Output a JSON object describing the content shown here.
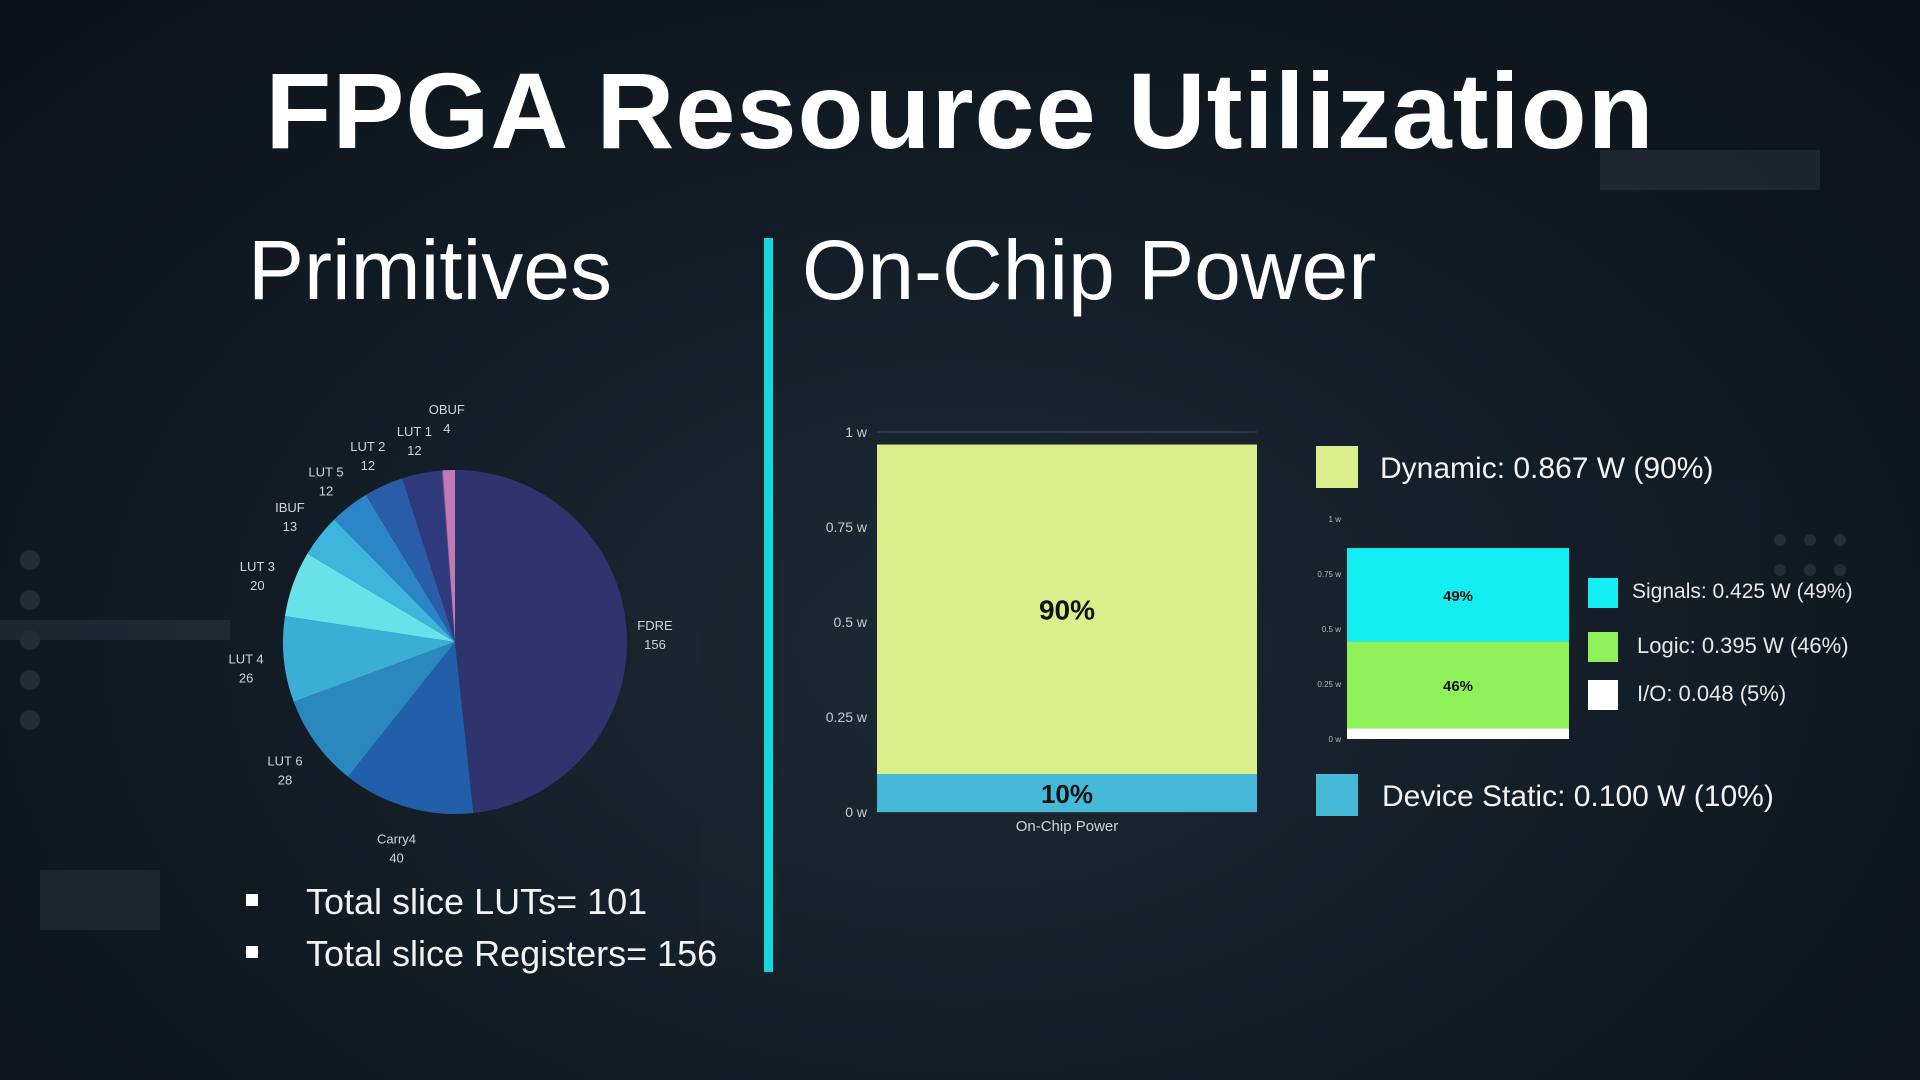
{
  "title": "FPGA Resource Utilization",
  "primitives": {
    "heading": "Primitives",
    "bullets": [
      "Total slice LUTs= 101",
      "Total slice Registers= 156"
    ]
  },
  "power": {
    "heading": "On-Chip Power",
    "legend": {
      "dynamic": "Dynamic: 0.867 W  (90%)",
      "signals": "Signals: 0.425 W  (49%)",
      "logic": "Logic: 0.395 W  (46%)",
      "io": "I/O:  0.048  (5%)",
      "static": "Device Static:  0.100 W  (10%)"
    }
  },
  "chart_data": [
    {
      "type": "pie",
      "title": "Primitives",
      "categories": [
        "FDRE",
        "Carry4",
        "LUT 6",
        "LUT 4",
        "LUT 3",
        "IBUF",
        "LUT 5",
        "LUT 2",
        "LUT 1",
        "OBUF"
      ],
      "values": [
        156,
        40,
        28,
        26,
        20,
        13,
        12,
        12,
        12,
        4
      ],
      "colors": [
        "#2e356e",
        "#215faa",
        "#2b88bf",
        "#3aaed6",
        "#69e1ea",
        "#3eb5dd",
        "#2a86c7",
        "#2a5da7",
        "#2f3a7d",
        "#7a5196"
      ],
      "extra_slice_color": "#c27ab4"
    },
    {
      "type": "bar",
      "stacked": true,
      "title": "",
      "categories": [
        "On-Chip Power"
      ],
      "series": [
        {
          "name": "Device Static",
          "values": [
            0.1
          ],
          "label": "10%",
          "color": "#46b8d8"
        },
        {
          "name": "Dynamic",
          "values": [
            0.867
          ],
          "label": "90%",
          "color": "#dbee8c"
        }
      ],
      "yticks": [
        "0 w",
        "0.25 w",
        "0.5 w",
        "0.75 w",
        "1 w"
      ],
      "ylim": [
        0,
        1
      ],
      "xlabel": "On-Chip Power"
    },
    {
      "type": "bar",
      "stacked": true,
      "title": "",
      "categories": [
        "Dynamic"
      ],
      "series": [
        {
          "name": "I/O",
          "values": [
            0.048
          ],
          "label": "",
          "color": "#ffffff"
        },
        {
          "name": "Logic",
          "values": [
            0.395
          ],
          "label": "46%",
          "color": "#8ef159"
        },
        {
          "name": "Signals",
          "values": [
            0.425
          ],
          "label": "49%",
          "color": "#12eef2"
        }
      ],
      "yticks": [
        "0 w",
        "0.25 w",
        "0.5 w",
        "0.75 w",
        "1 w"
      ],
      "ylim": [
        0,
        1
      ]
    }
  ]
}
